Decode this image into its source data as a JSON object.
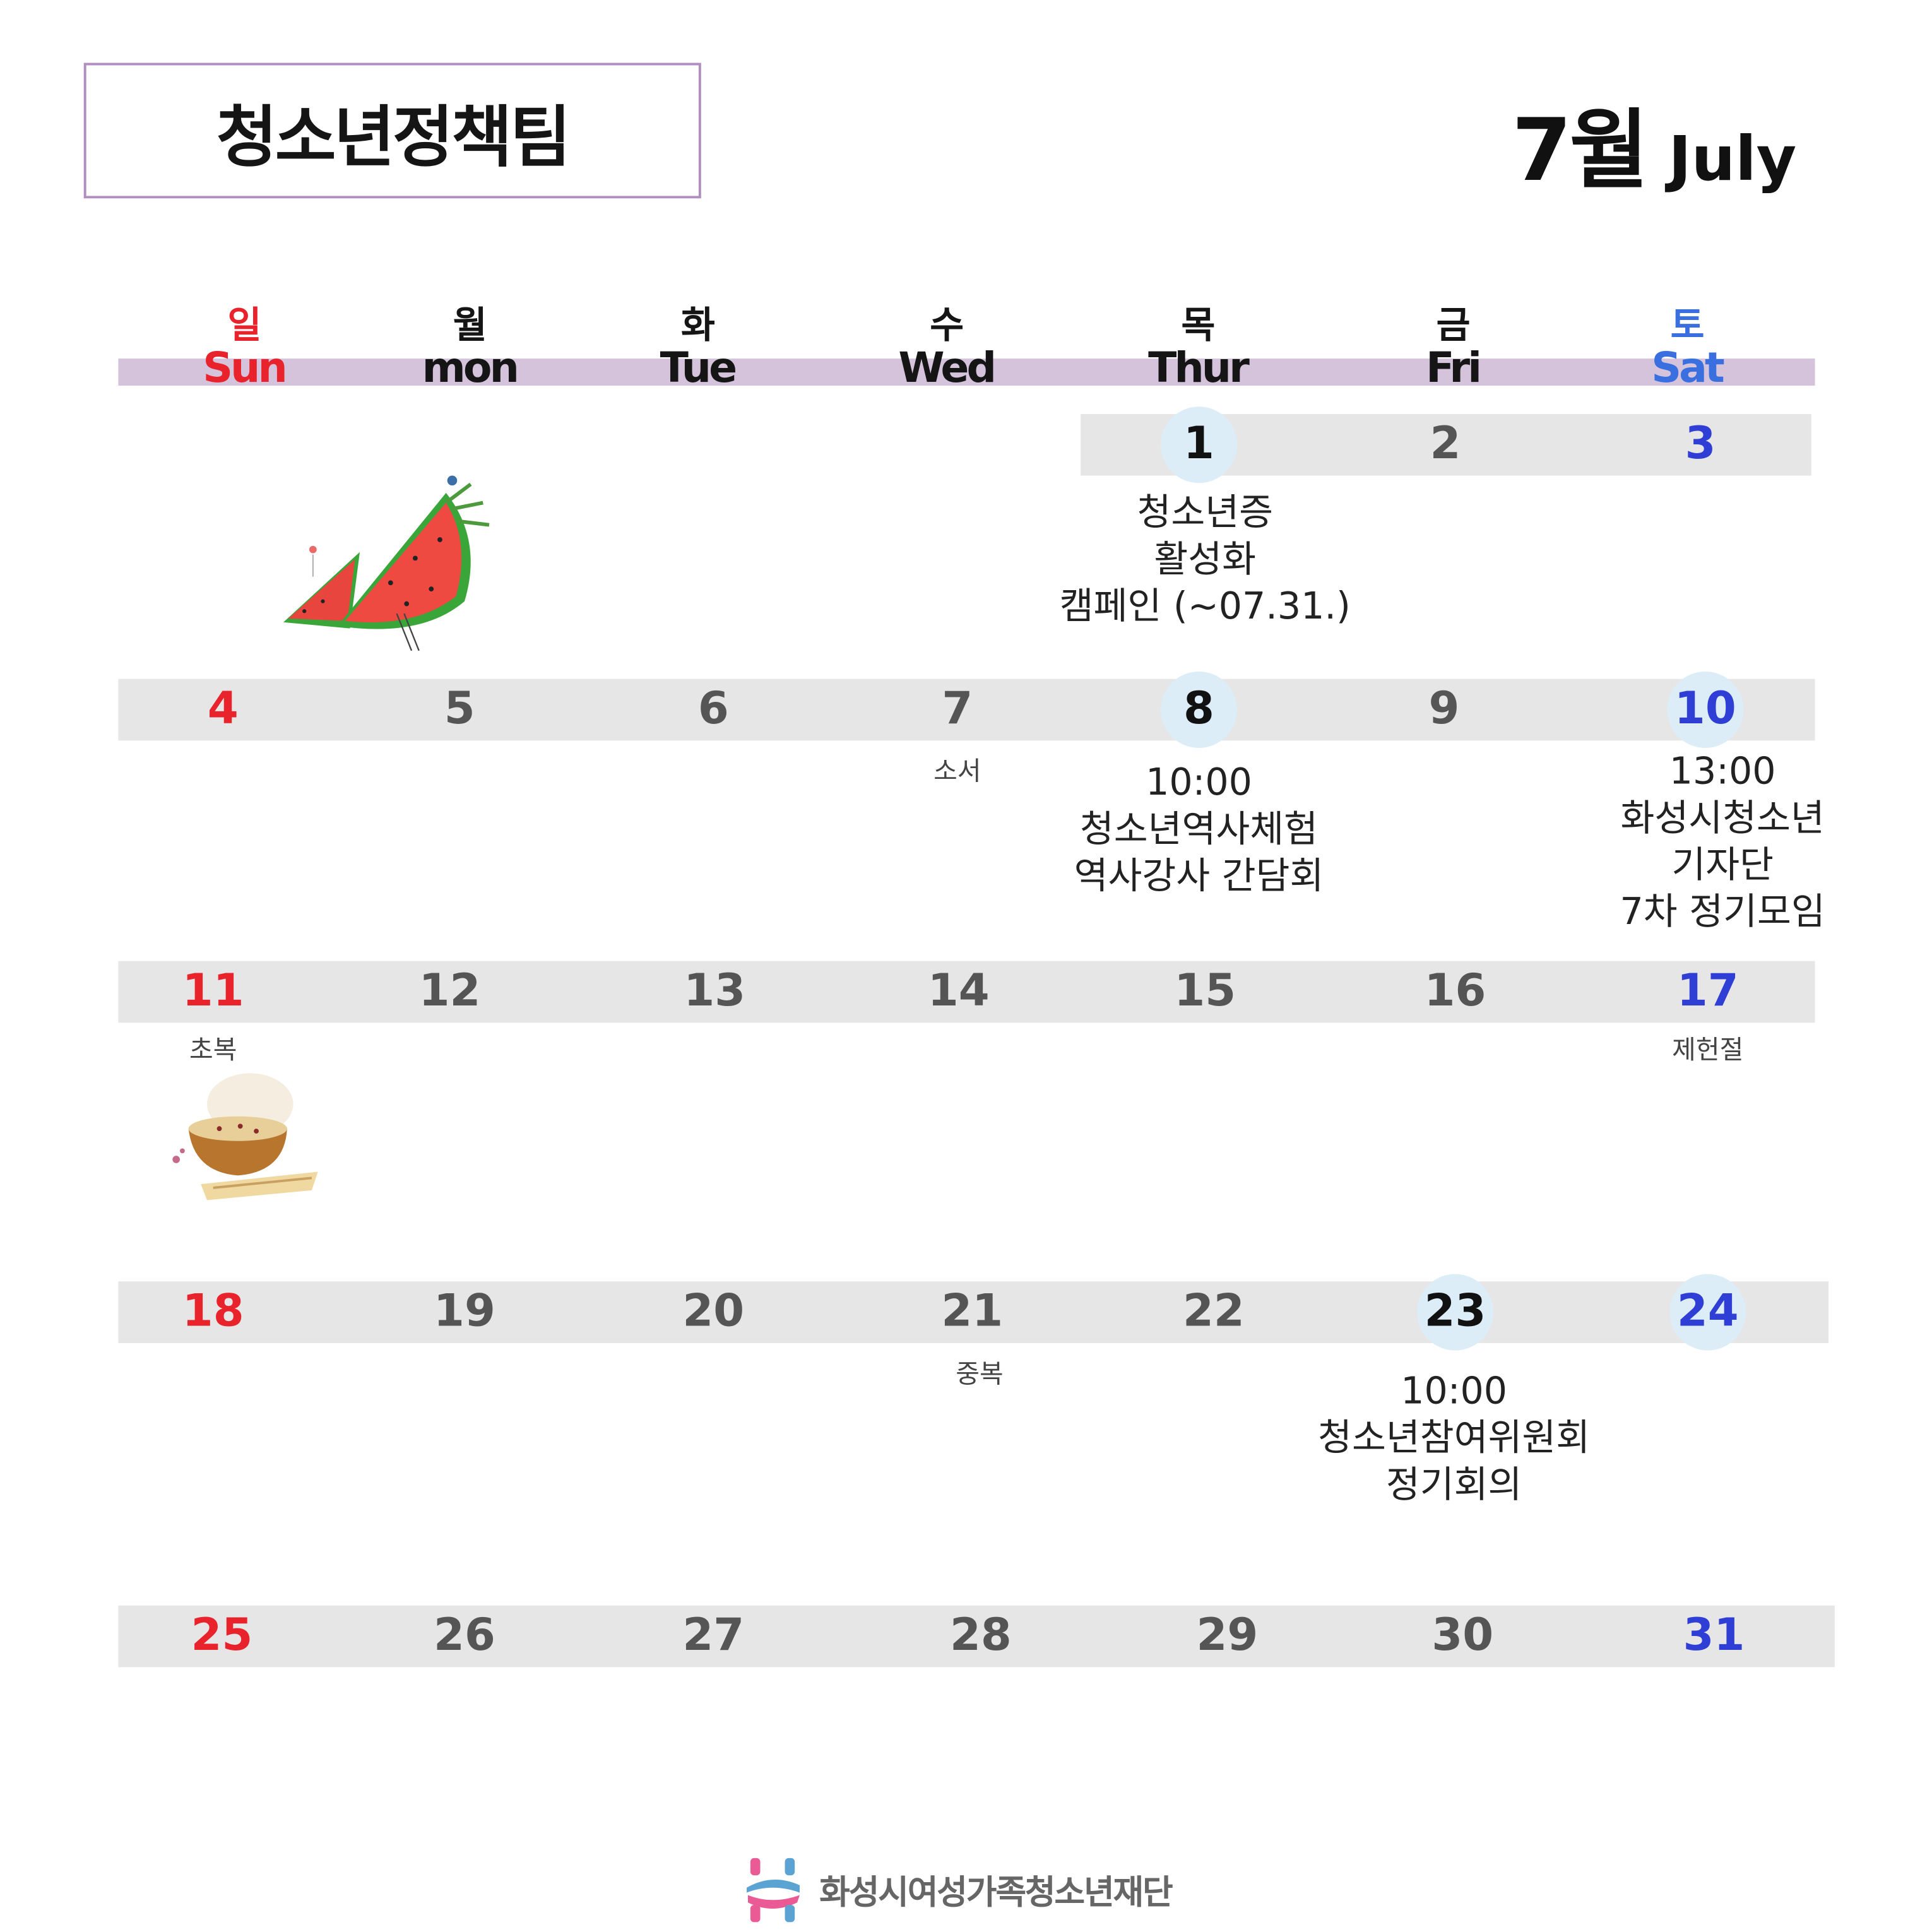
{
  "header": {
    "team_title": "청소년정책팀",
    "month_ko": "7월",
    "month_en": "July"
  },
  "weekdays": [
    {
      "ko": "일",
      "en": "Sun",
      "color": "#e8232b"
    },
    {
      "ko": "월",
      "en": "mon",
      "color": "#151515"
    },
    {
      "ko": "화",
      "en": "Tue",
      "color": "#151515"
    },
    {
      "ko": "수",
      "en": "Wed",
      "color": "#151515"
    },
    {
      "ko": "목",
      "en": "Thur",
      "color": "#151515"
    },
    {
      "ko": "금",
      "en": "Fri",
      "color": "#151515"
    },
    {
      "ko": "토",
      "en": "Sat",
      "color": "#3a6fe0"
    }
  ],
  "colors": {
    "sunday": "#e8232b",
    "saturday": "#2f3fd6",
    "header_band": "#d5c3dc",
    "row_band": "#e6e6e6",
    "highlight_circle": "#dcedf8",
    "title_border": "#b08fc0"
  },
  "dates": [
    "1",
    "2",
    "3",
    "4",
    "5",
    "6",
    "7",
    "8",
    "9",
    "10",
    "11",
    "12",
    "13",
    "14",
    "15",
    "16",
    "17",
    "18",
    "19",
    "20",
    "21",
    "22",
    "23",
    "24",
    "25",
    "26",
    "27",
    "28",
    "29",
    "30",
    "31"
  ],
  "holidays": {
    "d7": "소서",
    "d11": "초복",
    "d17": "제헌절",
    "d21": "중복"
  },
  "events": {
    "d1": [
      "청소년증",
      "활성화",
      "캠페인 (~07.31.)"
    ],
    "d8": [
      "10:00",
      "청소년역사체험",
      "역사강사 간담회"
    ],
    "d10": [
      "13:00",
      "화성시청소년",
      "기자단",
      "7차 정기모임"
    ],
    "d23": [
      "10:00",
      "청소년참여위원회",
      "정기회의"
    ]
  },
  "highlighted_dates": [
    "1",
    "8",
    "10",
    "23",
    "24"
  ],
  "footer": {
    "org_name": "화성시여성가족청소년재단"
  },
  "images": {
    "watermelon": "watermelon-illustration",
    "soup": "samgyetang-bowl-illustration"
  }
}
